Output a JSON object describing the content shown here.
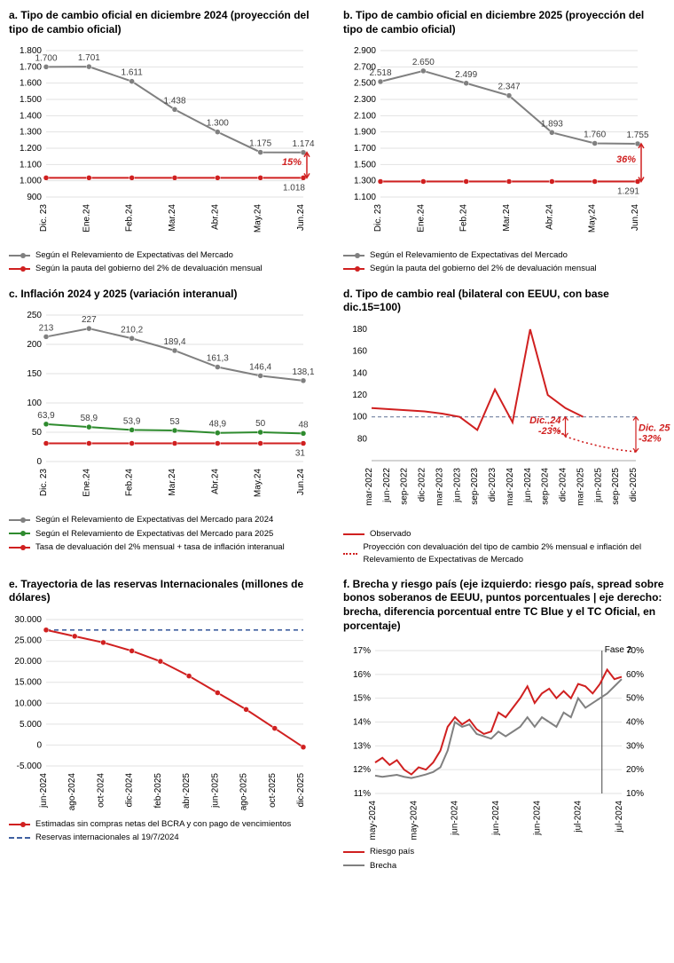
{
  "colors": {
    "gray": "#808080",
    "red": "#d02020",
    "green": "#2e8b2e",
    "navy": "#5a6a8a",
    "blue_dash": "#4060a0",
    "grid": "#e2e2e2",
    "text": "#000000"
  },
  "panels": {
    "a": {
      "title": "a. Tipo de cambio oficial en diciembre 2024 (proyección del tipo de cambio oficial)",
      "ylim": [
        900,
        1800
      ],
      "ytick_step": 100,
      "x_labels": [
        "Dic. 23",
        "Ene.24",
        "Feb.24",
        "Mar.24",
        "Abr.24",
        "May.24",
        "Jun.24"
      ],
      "series": [
        {
          "name": "Según el Relevamiento de Expectativas del Mercado",
          "color": "#808080",
          "values": [
            1700,
            1701,
            1611,
            1438,
            1300,
            1175,
            1174
          ],
          "labels": [
            "1.700",
            "1.701",
            "1.611",
            "1.438",
            "1.300",
            "1.175",
            "1.174"
          ]
        },
        {
          "name": "Según la pauta del gobierno del 2% de devaluación mensual",
          "color": "#d02020",
          "values": [
            1018,
            1018,
            1018,
            1018,
            1018,
            1018,
            1018
          ],
          "last_label": "1.018"
        }
      ],
      "annot": {
        "text": "15%",
        "color": "#d02020"
      }
    },
    "b": {
      "title": "b. Tipo de cambio oficial en diciembre 2025 (proyección del tipo de cambio oficial)",
      "ylim": [
        1100,
        2900
      ],
      "ytick_step": 200,
      "x_labels": [
        "Dic. 23",
        "Ene.24",
        "Feb.24",
        "Mar.24",
        "Abr.24",
        "May.24",
        "Jun.24"
      ],
      "series": [
        {
          "name": "Según el Relevamiento de Expectativas del Mercado",
          "color": "#808080",
          "values": [
            2518,
            2650,
            2499,
            2347,
            1893,
            1760,
            1755
          ],
          "labels": [
            "2.518",
            "2.650",
            "2.499",
            "2.347",
            "1.893",
            "1.760",
            "1.755"
          ]
        },
        {
          "name": "Según la pauta del gobierno del 2% de devaluación mensual",
          "color": "#d02020",
          "values": [
            1291,
            1291,
            1291,
            1291,
            1291,
            1291,
            1291
          ],
          "last_label": "1.291"
        }
      ],
      "annot": {
        "text": "36%",
        "color": "#d02020"
      }
    },
    "c": {
      "title": "c. Inflación 2024 y 2025 (variación interanual)",
      "ylim": [
        0,
        250
      ],
      "ytick_step": 50,
      "x_labels": [
        "Dic. 23",
        "Ene.24",
        "Feb.24",
        "Mar.24",
        "Abr.24",
        "May.24",
        "Jun.24"
      ],
      "series": [
        {
          "name": "Según el Relevamiento de Expectativas del Mercado para 2024",
          "color": "#808080",
          "values": [
            213,
            227,
            210.2,
            189.4,
            161.3,
            146.4,
            138.1
          ],
          "labels": [
            "213",
            "227",
            "210,2",
            "189,4",
            "161,3",
            "146,4",
            "138,1"
          ]
        },
        {
          "name": "Según el Relevamiento de Expectativas del Mercado para 2025",
          "color": "#2e8b2e",
          "values": [
            63.9,
            58.9,
            53.9,
            53,
            48.9,
            50,
            48
          ],
          "labels": [
            "63,9",
            "58,9",
            "53,9",
            "53",
            "48,9",
            "50",
            "48"
          ]
        },
        {
          "name": "Tasa de devaluación del 2% mensual + tasa de inflación interanual",
          "color": "#d02020",
          "values": [
            31,
            31,
            31,
            31,
            31,
            31,
            31
          ],
          "last_label": "31"
        }
      ]
    },
    "d": {
      "title": "d. Tipo de cambio real (bilateral con EEUU, con base dic.15=100)",
      "ylim": [
        60,
        180
      ],
      "ytick_step": 20,
      "x_labels": [
        "mar-2022",
        "jun-2022",
        "sep-2022",
        "dic-2022",
        "mar-2023",
        "jun-2023",
        "sep-2023",
        "dic-2023",
        "mar-2024",
        "jun-2024",
        "sep-2024",
        "dic-2024",
        "mar-2025",
        "jun-2025",
        "sep-2025",
        "dic-2025"
      ],
      "observed": {
        "name": "Observado",
        "color": "#d02020",
        "values": [
          108,
          107,
          106,
          105,
          103,
          100,
          88,
          125,
          95,
          180,
          120,
          108,
          100,
          null,
          null,
          null
        ]
      },
      "projection": {
        "name": "Proyección con devaluación del tipo de cambio 2% mensual e inflación del Relevamiento de Expectativas de Mercado",
        "color": "#d02020",
        "values": [
          null,
          null,
          null,
          null,
          null,
          null,
          null,
          null,
          null,
          null,
          95,
          82,
          77,
          73,
          70,
          68
        ]
      },
      "annot": [
        {
          "text": "Dic. 24 -23%",
          "color": "#d02020"
        },
        {
          "text": "Dic. 25 -32%",
          "color": "#d02020"
        }
      ]
    },
    "e": {
      "title": "e. Trayectoria de las reservas Internacionales (millones de dólares)",
      "ylim": [
        -5000,
        30000
      ],
      "ytick_step": 5000,
      "y_fmt": "thousands_dot",
      "x_labels": [
        "jun-2024",
        "ago-2024",
        "oct-2024",
        "dic-2024",
        "feb-2025",
        "abr-2025",
        "jun-2025",
        "ago-2025",
        "oct-2025",
        "dic-2025"
      ],
      "series": [
        {
          "name": "Estimadas sin compras netas del BCRA y con pago de vencimientos",
          "color": "#d02020",
          "values": [
            27500,
            26000,
            24500,
            22500,
            20000,
            16500,
            12500,
            8500,
            4000,
            -500
          ]
        }
      ],
      "refline": {
        "name": "Reservas internacionales al 19/7/2024",
        "color": "#4060a0",
        "value": 27500
      }
    },
    "f": {
      "title": "f. Brecha y riesgo país (eje izquierdo: riesgo país, spread sobre bonos soberanos de EEUU, puntos porcentuales | eje derecho: brecha, diferencia porcentual entre TC Blue y el TC Oficial, en porcentaje)",
      "yl": {
        "lim": [
          11,
          17
        ],
        "step": 1,
        "suffix": "%"
      },
      "yr": {
        "lim": [
          10,
          70
        ],
        "step": 10,
        "suffix": "%"
      },
      "x_labels": [
        "may-2024",
        "may-2024",
        "jun-2024",
        "jun-2024",
        "jun-2024",
        "jul-2024",
        "jul-2024"
      ],
      "riesgo": {
        "name": "Riesgo país",
        "color": "#d02020",
        "dense": [
          12.3,
          12.5,
          12.2,
          12.4,
          12.0,
          11.8,
          12.1,
          12.0,
          12.3,
          12.8,
          13.8,
          14.2,
          13.9,
          14.1,
          13.7,
          13.5,
          13.6,
          14.4,
          14.2,
          14.6,
          15.0,
          15.5,
          14.8,
          15.2,
          15.4,
          15.0,
          15.3,
          15.0,
          15.6,
          15.5,
          15.2,
          15.6,
          16.2,
          15.8,
          15.9
        ]
      },
      "brecha": {
        "name": "Brecha",
        "color": "#808080",
        "dense": [
          17.5,
          17,
          17.4,
          17.8,
          17,
          16.5,
          17.2,
          18,
          19,
          21,
          28,
          40,
          38,
          39,
          35,
          34,
          33,
          36,
          34,
          36,
          38,
          42,
          38,
          42,
          40,
          38,
          44,
          42,
          50,
          46,
          48,
          50,
          52,
          55,
          58
        ]
      },
      "fase2_label": "Fase 2"
    }
  }
}
